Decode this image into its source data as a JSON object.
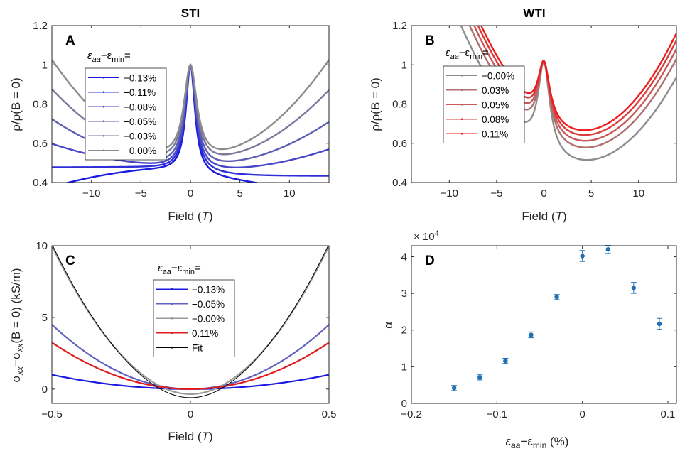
{
  "figure": {
    "panels": [
      {
        "letter": "A",
        "title": "STI",
        "xlabel": "Field (",
        "xlabel_var": "T",
        "ylabel": "ρ/ρ(B = 0)",
        "legend_title": "ε",
        "legend_title_sub1": "aa",
        "legend_title_mid": "−ε",
        "legend_title_sub2": "min",
        "legend_title_end": "=",
        "xticks": [
          "−10",
          "−5",
          "0",
          "5",
          "10"
        ],
        "yticks": [
          "0.4",
          "0.6",
          "0.8",
          "1",
          "1.2"
        ]
      },
      {
        "letter": "B",
        "title": "WTI",
        "xlabel": "Field (",
        "xlabel_var": "T",
        "ylabel": "ρ/ρ(B = 0)",
        "legend_title": "ε",
        "legend_title_sub1": "aa",
        "legend_title_mid": "−ε",
        "legend_title_sub2": "min",
        "legend_title_end": "=",
        "xticks": [
          "−10",
          "−5",
          "0",
          "5",
          "10"
        ],
        "yticks": [
          "0.4",
          "0.6",
          "0.8",
          "1",
          "1.2"
        ]
      },
      {
        "letter": "C",
        "xlabel": "Field (",
        "xlabel_var": "T",
        "ylabel_main": "σ",
        "ylabel_sub1": "xx",
        "ylabel_mid": "−σ",
        "ylabel_sub2": "xx",
        "ylabel_end": "(B = 0) (kS/m)",
        "legend_title": "ε",
        "legend_title_sub1": "aa",
        "legend_title_mid": "−ε",
        "legend_title_sub2": "min",
        "legend_title_end": "=",
        "xticks": [
          "−0.5",
          "0",
          "0.5"
        ],
        "yticks": [
          "0",
          "5",
          "10"
        ]
      },
      {
        "letter": "D",
        "xlabel_main": "ε",
        "xlabel_sub1": "aa",
        "xlabel_mid": "−ε",
        "xlabel_sub2": "min",
        "xlabel_end": " (%)",
        "ylabel": "α",
        "exponent_base": "× 10",
        "exponent_power": "4",
        "xticks": [
          "−0.2",
          "−0.1",
          "0",
          "0.1"
        ],
        "yticks": [
          "0",
          "1",
          "2",
          "3",
          "4"
        ]
      }
    ]
  },
  "chart_data": [
    {
      "type": "line",
      "panel": "A",
      "title": "STI",
      "xlabel": "Field (T)",
      "ylabel": "ρ/ρ(B = 0)",
      "xlim": [
        -14,
        14
      ],
      "ylim": [
        0.4,
        1.2
      ],
      "legend_placement": "left",
      "series": [
        {
          "name": "−0.13%",
          "color": "#1a1ae0",
          "min": 0.445,
          "tilt": 0.03,
          "width": 0.55,
          "quad": -0.0005
        },
        {
          "name": "−0.11%",
          "color": "#2f2fd8",
          "min": 0.455,
          "tilt": 0.022,
          "width": 0.6,
          "quad": 0.0
        },
        {
          "name": "−0.08%",
          "color": "#4646c8",
          "min": 0.465,
          "tilt": 0.014,
          "width": 0.65,
          "quad": 0.0006
        },
        {
          "name": "−0.05%",
          "color": "#5e5eb4",
          "min": 0.48,
          "tilt": 0.007,
          "width": 0.7,
          "quad": 0.0012
        },
        {
          "name": "−0.03%",
          "color": "#7a7a9e",
          "min": 0.5,
          "tilt": 0.002,
          "width": 0.75,
          "quad": 0.0019
        },
        {
          "name": "−0.00%",
          "color": "#8c8c8c",
          "min": 0.515,
          "tilt": 0.0,
          "width": 0.8,
          "quad": 0.0026
        }
      ]
    },
    {
      "type": "line",
      "panel": "B",
      "title": "WTI",
      "xlabel": "Field (T)",
      "ylabel": "ρ/ρ(B = 0)",
      "xlim": [
        -14,
        14
      ],
      "ylim": [
        0.4,
        1.2
      ],
      "legend_placement": "left",
      "series": [
        {
          "name": "−0.00%",
          "color": "#8c8c8c",
          "base": 0.525,
          "offset": 0.0
        },
        {
          "name": "0.03%",
          "color": "#b07070",
          "base": 0.525,
          "offset": 0.065
        },
        {
          "name": "0.05%",
          "color": "#c85a5a",
          "base": 0.525,
          "offset": 0.1
        },
        {
          "name": "0.08%",
          "color": "#dc3c3c",
          "base": 0.525,
          "offset": 0.13
        },
        {
          "name": "0.11%",
          "color": "#ee1c1c",
          "base": 0.525,
          "offset": 0.155
        }
      ]
    },
    {
      "type": "line",
      "panel": "C",
      "xlabel": "Field (T)",
      "ylabel": "σxx−σxx(B = 0) (kS/m)",
      "xlim": [
        -0.5,
        0.5
      ],
      "ylim": [
        -1,
        10
      ],
      "legend_placement": "top-right",
      "series": [
        {
          "name": "−0.13%",
          "color": "#1a1ae0",
          "a": 4.0,
          "c": 0.0
        },
        {
          "name": "−0.05%",
          "color": "#6262c0",
          "a": 18.0,
          "c": 0.0
        },
        {
          "name": "−0.00%",
          "color": "#9a9a9a",
          "a": 40.0,
          "c": -0.35
        },
        {
          "name": "0.11%",
          "color": "#e01c1c",
          "a": 13.0,
          "c": 0.0
        },
        {
          "name": "Fit",
          "color": "#000000",
          "a": 40.5,
          "c": -0.6
        }
      ]
    },
    {
      "type": "scatter",
      "panel": "D",
      "xlabel": "εaa−εmin (%)",
      "ylabel": "α",
      "xlim": [
        -0.2,
        0.11
      ],
      "ylim": [
        0,
        4.3
      ],
      "y_multiplier": "× 10^4",
      "color": "#1f6fb4",
      "x": [
        -0.15,
        -0.12,
        -0.09,
        -0.06,
        -0.03,
        0.0,
        0.03,
        0.06,
        0.09
      ],
      "y": [
        0.42,
        0.71,
        1.16,
        1.87,
        2.9,
        4.02,
        4.2,
        3.15,
        2.17
      ],
      "err": [
        0.07,
        0.07,
        0.07,
        0.08,
        0.07,
        0.15,
        0.11,
        0.15,
        0.15
      ]
    }
  ]
}
